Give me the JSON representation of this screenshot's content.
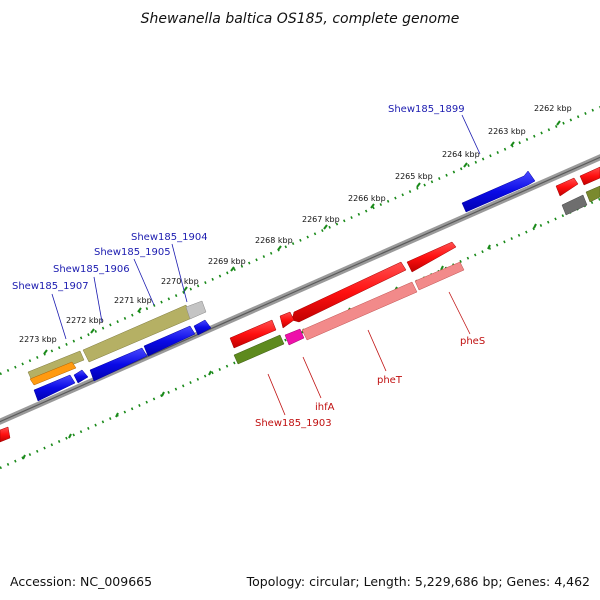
{
  "title": "Shewanella baltica OS185, complete genome",
  "accession": "Accession: NC_009665",
  "topology": "Topology: circular; Length: 5,229,686 bp; Genes: 4,462",
  "ticks": [
    "2262 kbp",
    "2263 kbp",
    "2264 kbp",
    "2265 kbp",
    "2266 kbp",
    "2267 kbp",
    "2268 kbp",
    "2269 kbp",
    "2270 kbp",
    "2271 kbp",
    "2272 kbp",
    "2273 kbp"
  ],
  "gene_labels_top": [
    "Shew185_1899",
    "Shew185_1904",
    "Shew185_1905",
    "Shew185_1906",
    "Shew185_1907"
  ],
  "gene_labels_bottom": [
    "pheS",
    "pheT",
    "ihfA",
    "Shew185_1903"
  ],
  "colors": {
    "blue_gene": "#0a0ae6",
    "red_gene": "#ff1010",
    "pink_gene": "#f28a8a",
    "olive_gene": "#5e8a1e",
    "khaki_gene": "#b5b064",
    "orange_gene": "#ff9a10",
    "magenta_gene": "#ee10aa",
    "gray_gene": "#6e6e6e",
    "light_gray_gene": "#c4c4c4",
    "backbone": "#808080",
    "dotted_track": "#1a8a1a"
  }
}
